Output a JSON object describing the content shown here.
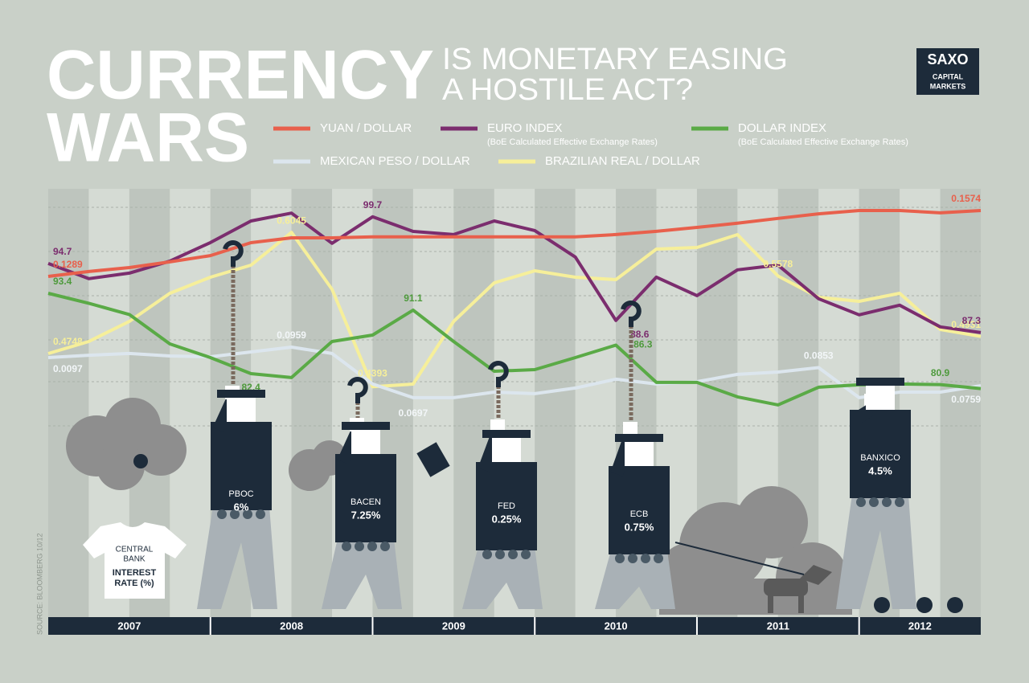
{
  "chart_data": {
    "type": "line",
    "title_lines": [
      "CURRENCY",
      "WARS"
    ],
    "subtitle_lines": [
      "IS MONETARY EASING",
      "A HOSTILE ACT?"
    ],
    "logo": [
      "SAXO",
      "CAPITAL",
      "MARKETS"
    ],
    "source": "SOURCE: BLOOMBERG 10/12",
    "categories": [
      "2007",
      null,
      null,
      null,
      "2008",
      null,
      null,
      null,
      "2009",
      null,
      null,
      null,
      "2010",
      null,
      null,
      null,
      "2011",
      null,
      null,
      null,
      "2012",
      null,
      null,
      null
    ],
    "series": [
      {
        "name": "YUAN / DOLLAR",
        "color": "#e8604c",
        "label_color": "#e8604c",
        "ylim": [
          0.0642,
          0.1668
        ],
        "values": [
          0.1289,
          0.131,
          0.1327,
          0.1352,
          0.1379,
          0.1435,
          0.1456,
          0.1456,
          0.146,
          0.146,
          0.146,
          0.146,
          0.146,
          0.146,
          0.147,
          0.1484,
          0.1501,
          0.1519,
          0.154,
          0.156,
          0.1574,
          0.1574,
          0.1564,
          0.1574
        ],
        "value_labels": [
          "0.1289",
          null,
          null,
          null,
          null,
          null,
          null,
          null,
          null,
          null,
          null,
          null,
          null,
          null,
          null,
          null,
          null,
          null,
          null,
          null,
          null,
          null,
          null,
          "0.1574"
        ]
      },
      {
        "name": "EURO INDEX",
        "note": "(BoE Calculated Effective Exchange Rates)",
        "color": "#7b2d6e",
        "label_color": "#7b2d6e",
        "ylim": [
          77.3,
          102.7
        ],
        "values": [
          94.7,
          93.07,
          93.67,
          94.96,
          96.94,
          99.26,
          100.1,
          96.86,
          99.7,
          98.14,
          97.8,
          99.26,
          98.23,
          95.39,
          88.6,
          93.24,
          91.26,
          94.02,
          94.53,
          90.92,
          89.2,
          90.23,
          87.91,
          87.3
        ],
        "value_labels": [
          "94.7",
          null,
          null,
          null,
          null,
          null,
          null,
          null,
          "99.7",
          null,
          null,
          null,
          null,
          null,
          "88.6",
          null,
          null,
          null,
          null,
          null,
          null,
          null,
          null,
          "87.3"
        ]
      },
      {
        "name": "DOLLAR INDEX",
        "note": "(BoE Calculated Effective Exchange Rates)",
        "color": "#5aaa46",
        "label_color": "#4e9a3c",
        "ylim": [
          75.25,
          107.7
        ],
        "values": [
          93.4,
          92.04,
          90.5,
          86.47,
          84.6,
          82.4,
          81.86,
          86.8,
          87.68,
          91.1,
          86.8,
          82.73,
          82.95,
          84.6,
          86.3,
          81.2,
          81.2,
          79.22,
          78.12,
          80.54,
          80.87,
          80.98,
          80.9,
          80.35
        ],
        "value_labels": [
          "93.4",
          null,
          null,
          null,
          null,
          "82.4",
          null,
          null,
          null,
          "91.1",
          null,
          null,
          null,
          null,
          "86.3",
          null,
          null,
          null,
          null,
          null,
          null,
          null,
          "80.9",
          null
        ]
      },
      {
        "name": "MEXICAN PESO / DOLLAR",
        "color": "#dce6ee",
        "label_color": "#f2f6f8",
        "ylim": [
          0.0551,
          0.1779
        ],
        "values": [
          0.0905,
          0.0917,
          0.0926,
          0.0913,
          0.0909,
          0.0934,
          0.0959,
          0.0926,
          0.0768,
          0.0697,
          0.0697,
          0.0726,
          0.0718,
          0.0747,
          0.0793,
          0.0768,
          0.078,
          0.0818,
          0.083,
          0.0853,
          0.0697,
          0.0726,
          0.0726,
          0.0759
        ],
        "value_labels": [
          null,
          null,
          null,
          null,
          null,
          null,
          "0.0959",
          null,
          null,
          "0.0697",
          null,
          null,
          null,
          null,
          null,
          null,
          null,
          null,
          null,
          "0.0853",
          null,
          null,
          null,
          "0.0759"
        ]
      },
      {
        "name": "BRAZILIAN REAL / DOLLAR",
        "color": "#f6ef9a",
        "label_color": "#f6ef9a",
        "ylim": [
          0.3974,
          0.6511
        ],
        "values": [
          0.4748,
          0.4877,
          0.5092,
          0.5393,
          0.5565,
          0.5694,
          0.6045,
          0.5436,
          0.4393,
          0.4421,
          0.5092,
          0.5505,
          0.5634,
          0.5565,
          0.5539,
          0.5866,
          0.5883,
          0.6021,
          0.5578,
          0.535,
          0.5307,
          0.5393,
          0.5006,
          0.4931
        ],
        "value_labels": [
          "0.4748",
          null,
          null,
          null,
          null,
          null,
          "0.6045",
          null,
          "0.4393",
          null,
          null,
          null,
          null,
          null,
          null,
          null,
          null,
          null,
          "0.5578",
          null,
          null,
          null,
          null,
          "0.4931"
        ]
      }
    ],
    "annotations": [
      "0.0097"
    ],
    "banks": [
      {
        "name": "PBOC",
        "rate": "6%"
      },
      {
        "name": "BACEN",
        "rate": "7.25%"
      },
      {
        "name": "FED",
        "rate": "0.25%"
      },
      {
        "name": "ECB",
        "rate": "0.75%"
      },
      {
        "name": "BANXICO",
        "rate": "4.5%"
      }
    ],
    "shirt_lines": [
      "CENTRAL",
      "BANK",
      "INTEREST",
      "RATE (%)"
    ]
  }
}
